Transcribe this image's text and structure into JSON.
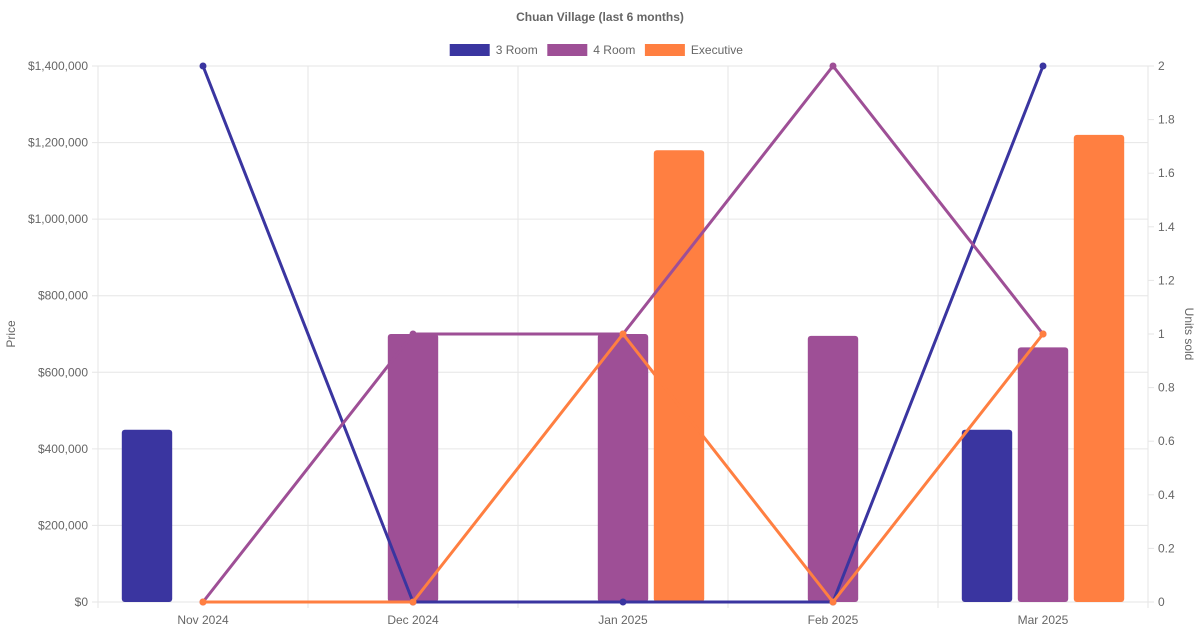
{
  "chart_data": {
    "type": "bar",
    "title": "Chuan Village (last 6 months)",
    "categories": [
      "Nov 2024",
      "Dec 2024",
      "Jan 2025",
      "Feb 2025",
      "Mar 2025"
    ],
    "y_left": {
      "label": "Price",
      "range": [
        0,
        1400000
      ],
      "ticks": [
        0,
        200000,
        400000,
        600000,
        800000,
        1000000,
        1200000,
        1400000
      ],
      "tick_labels": [
        "$0",
        "$200,000",
        "$400,000",
        "$600,000",
        "$800,000",
        "$1,000,000",
        "$1,200,000",
        "$1,400,000"
      ]
    },
    "y_right": {
      "label": "Units sold",
      "range": [
        0,
        2
      ],
      "ticks": [
        0,
        0.2,
        0.4,
        0.6,
        0.8,
        1,
        1.2,
        1.4,
        1.6,
        1.8,
        2
      ],
      "tick_labels": [
        "0",
        "0.2",
        "0.4",
        "0.6",
        "0.8",
        "1",
        "1.2",
        "1.4",
        "1.6",
        "1.8",
        "2"
      ]
    },
    "grid": true,
    "legend_position": "top",
    "series": [
      {
        "name": "3 Room",
        "color": "#3a35a0",
        "price": [
          450000,
          null,
          null,
          null,
          450000
        ],
        "units_sold": [
          2,
          0,
          0,
          0,
          2
        ]
      },
      {
        "name": "4 Room",
        "color": "#9e4f96",
        "price": [
          null,
          700000,
          700000,
          695000,
          665000
        ],
        "units_sold": [
          0,
          1,
          1,
          2,
          1
        ]
      },
      {
        "name": "Executive",
        "color": "#ff7f41",
        "price": [
          null,
          null,
          1180000,
          null,
          1220000
        ],
        "units_sold": [
          0,
          0,
          1,
          0,
          1
        ]
      }
    ]
  }
}
